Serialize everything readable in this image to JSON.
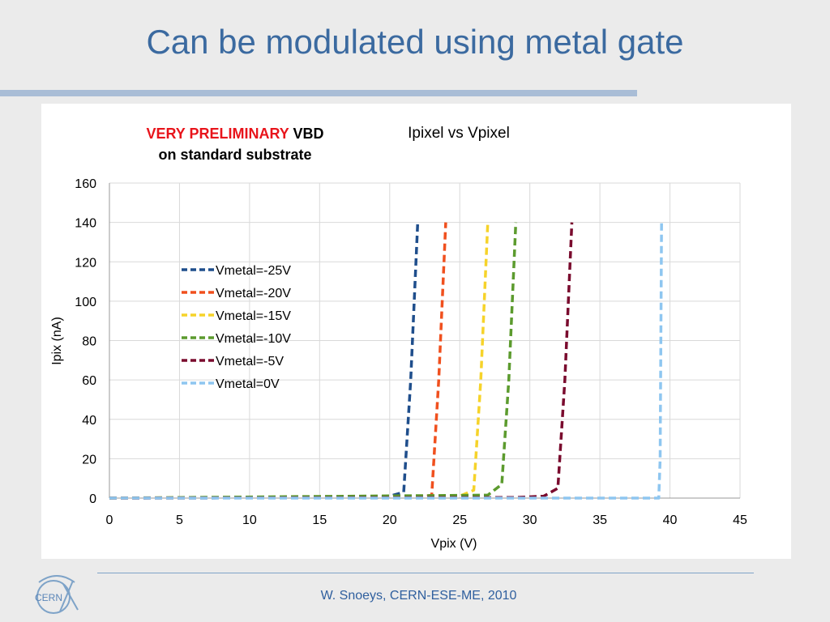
{
  "slide": {
    "title": "Can be modulated using metal gate",
    "footer": "W. Snoeys, CERN-ESE-ME, 2010",
    "logo_text": "CERN"
  },
  "annotation": {
    "warning": "VERY PRELIMINARY",
    "vbd": "VBD",
    "line2": "on standard substrate"
  },
  "colors": {
    "title": "#3b6aa0",
    "warning": "#e8141b"
  },
  "chart_data": {
    "type": "line",
    "title": "Ipixel vs Vpixel",
    "xlabel": "Vpix (V)",
    "ylabel": "Ipix (nA)",
    "xlim": [
      0,
      45
    ],
    "ylim": [
      0,
      160
    ],
    "xticks": [
      0,
      5,
      10,
      15,
      20,
      25,
      30,
      35,
      40,
      45
    ],
    "yticks": [
      0,
      20,
      40,
      60,
      80,
      100,
      120,
      140,
      160
    ],
    "grid": true,
    "legend_position": "left-inside",
    "line_style": "dashed",
    "series": [
      {
        "name": "Vmetal=-25V",
        "color": "#1f4e8c",
        "x": [
          0,
          19,
          20,
          21,
          21.5,
          22
        ],
        "y": [
          0,
          0.2,
          1,
          3,
          60,
          140
        ]
      },
      {
        "name": "Vmetal=-20V",
        "color": "#f0501e",
        "x": [
          0,
          22,
          23,
          23.5,
          24
        ],
        "y": [
          0,
          0.3,
          1.5,
          60,
          140
        ]
      },
      {
        "name": "Vmetal=-15V",
        "color": "#f6d32a",
        "x": [
          0,
          25,
          26,
          26.5,
          27
        ],
        "y": [
          0,
          1,
          4,
          60,
          140
        ]
      },
      {
        "name": "Vmetal=-10V",
        "color": "#5c9b2e",
        "x": [
          0,
          27,
          28,
          28.5,
          29
        ],
        "y": [
          0,
          1.5,
          7,
          60,
          140
        ]
      },
      {
        "name": "Vmetal=-5V",
        "color": "#7a0b2e",
        "x": [
          0,
          29,
          31,
          32,
          32.5,
          33
        ],
        "y": [
          0,
          0.3,
          1,
          5,
          60,
          140
        ]
      },
      {
        "name": "Vmetal=0V",
        "color": "#8ec6f0",
        "x": [
          0,
          39.2,
          39.3,
          39.4
        ],
        "y": [
          0,
          0,
          20,
          140
        ]
      }
    ]
  }
}
